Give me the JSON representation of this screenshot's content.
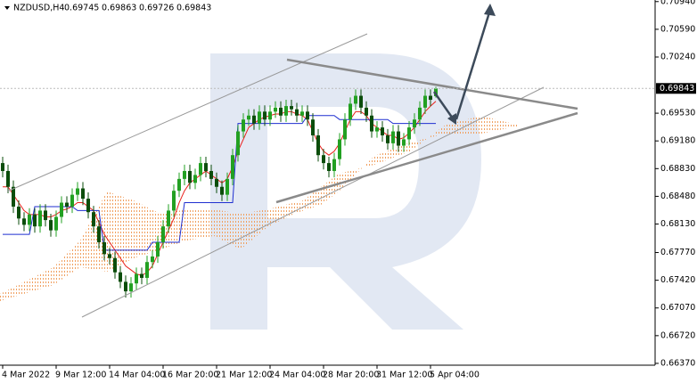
{
  "chart_data": {
    "type": "candlestick",
    "symbol": "NZDUSD,H4",
    "header_prices": [
      "0.69745",
      "0.69863",
      "0.69726",
      "0.69843"
    ],
    "categories": [
      "4 Mar 2022",
      null,
      null,
      null,
      null,
      null,
      null,
      null,
      null,
      null,
      "9 Mar 12:00",
      null,
      null,
      null,
      null,
      null,
      null,
      null,
      null,
      null,
      "14 Mar 04:00",
      null,
      null,
      null,
      null,
      null,
      null,
      null,
      null,
      null,
      "16 Mar 20:00",
      null,
      null,
      null,
      null,
      null,
      null,
      null,
      null,
      null,
      "21 Mar 12:00",
      null,
      null,
      null,
      null,
      null,
      null,
      null,
      null,
      null,
      "24 Mar 04:00",
      null,
      null,
      null,
      null,
      null,
      null,
      null,
      null,
      null,
      "28 Mar 20:00",
      null,
      null,
      null,
      null,
      null,
      null,
      null,
      null,
      null,
      "31 Mar 12:00",
      null,
      null,
      null,
      null,
      null,
      null,
      null,
      null,
      null,
      "5 Apr 04:00",
      null
    ],
    "open": [
      0.689,
      0.688,
      0.686,
      0.6835,
      0.682,
      0.6812,
      0.6825,
      0.681,
      0.683,
      0.6818,
      0.6805,
      0.6822,
      0.684,
      0.6835,
      0.685,
      0.6858,
      0.6845,
      0.6828,
      0.681,
      0.679,
      0.6775,
      0.677,
      0.6752,
      0.674,
      0.6728,
      0.6738,
      0.675,
      0.6745,
      0.6765,
      0.6772,
      0.679,
      0.681,
      0.683,
      0.6855,
      0.687,
      0.688,
      0.6865,
      0.6875,
      0.689,
      0.688,
      0.687,
      0.686,
      0.685,
      0.687,
      0.69,
      0.693,
      0.6945,
      0.695,
      0.694,
      0.6955,
      0.6945,
      0.6955,
      0.696,
      0.695,
      0.6962,
      0.6958,
      0.695,
      0.6955,
      0.6945,
      0.6925,
      0.69,
      0.689,
      0.688,
      0.6895,
      0.692,
      0.6945,
      0.6965,
      0.6975,
      0.696,
      0.695,
      0.693,
      0.6935,
      0.6925,
      0.6915,
      0.693,
      0.6912,
      0.692,
      0.6935,
      0.6945,
      0.696,
      0.6975,
      0.69745
    ],
    "high": [
      0.6898,
      0.6888,
      0.6868,
      0.6843,
      0.6828,
      0.6833,
      0.6833,
      0.6838,
      0.6838,
      0.6826,
      0.683,
      0.6848,
      0.6848,
      0.6858,
      0.6866,
      0.6866,
      0.6853,
      0.6836,
      0.6818,
      0.6798,
      0.6783,
      0.6778,
      0.676,
      0.6748,
      0.6746,
      0.6758,
      0.6758,
      0.6773,
      0.678,
      0.6798,
      0.6818,
      0.6838,
      0.6863,
      0.6878,
      0.6888,
      0.6888,
      0.6883,
      0.6898,
      0.6898,
      0.6888,
      0.6878,
      0.6868,
      0.6878,
      0.6908,
      0.6938,
      0.6953,
      0.6958,
      0.6958,
      0.6963,
      0.6963,
      0.6963,
      0.6968,
      0.6968,
      0.697,
      0.697,
      0.6966,
      0.6963,
      0.6963,
      0.6953,
      0.6933,
      0.6908,
      0.6898,
      0.6903,
      0.6928,
      0.6953,
      0.6973,
      0.6983,
      0.6983,
      0.6968,
      0.6958,
      0.6943,
      0.6943,
      0.6933,
      0.6938,
      0.6938,
      0.6928,
      0.6943,
      0.6953,
      0.6968,
      0.6983,
      0.6983,
      0.69863
    ],
    "low": [
      0.6872,
      0.6852,
      0.6827,
      0.6812,
      0.6804,
      0.6804,
      0.6802,
      0.6802,
      0.681,
      0.6797,
      0.6797,
      0.6814,
      0.6827,
      0.6827,
      0.6842,
      0.6837,
      0.682,
      0.6802,
      0.6782,
      0.6767,
      0.6762,
      0.6744,
      0.6732,
      0.672,
      0.672,
      0.673,
      0.6737,
      0.6737,
      0.6757,
      0.6764,
      0.6782,
      0.6802,
      0.6822,
      0.6847,
      0.6862,
      0.6857,
      0.6857,
      0.6867,
      0.6872,
      0.6862,
      0.6852,
      0.6842,
      0.6842,
      0.6862,
      0.6892,
      0.6922,
      0.6937,
      0.6932,
      0.6932,
      0.6937,
      0.6937,
      0.6947,
      0.6942,
      0.6942,
      0.695,
      0.6942,
      0.6942,
      0.6937,
      0.6917,
      0.6892,
      0.6882,
      0.6872,
      0.6872,
      0.6887,
      0.6912,
      0.6937,
      0.6957,
      0.6952,
      0.6942,
      0.6922,
      0.6922,
      0.6917,
      0.6907,
      0.6907,
      0.6904,
      0.6904,
      0.6912,
      0.6927,
      0.6937,
      0.6952,
      0.6962,
      0.69726
    ],
    "close": [
      0.688,
      0.686,
      0.6835,
      0.682,
      0.6812,
      0.6825,
      0.681,
      0.683,
      0.6818,
      0.6805,
      0.6822,
      0.684,
      0.6835,
      0.685,
      0.6858,
      0.6845,
      0.6828,
      0.681,
      0.679,
      0.6775,
      0.677,
      0.6752,
      0.674,
      0.6728,
      0.6738,
      0.675,
      0.6745,
      0.6765,
      0.6772,
      0.679,
      0.681,
      0.683,
      0.6855,
      0.687,
      0.688,
      0.6865,
      0.6875,
      0.689,
      0.688,
      0.687,
      0.686,
      0.685,
      0.687,
      0.69,
      0.693,
      0.6945,
      0.695,
      0.694,
      0.6955,
      0.6945,
      0.6955,
      0.696,
      0.695,
      0.6962,
      0.6958,
      0.695,
      0.6955,
      0.6945,
      0.6925,
      0.69,
      0.689,
      0.688,
      0.6895,
      0.692,
      0.6945,
      0.6965,
      0.6975,
      0.696,
      0.695,
      0.693,
      0.6935,
      0.6925,
      0.6915,
      0.693,
      0.6912,
      0.692,
      0.6935,
      0.6945,
      0.696,
      0.6975,
      0.697,
      0.69843
    ],
    "up_color": "#22a022",
    "down_color": "#0b4d0b",
    "series": [
      {
        "color": "#e8201a",
        "values": [
          0.686,
          0.686,
          0.685,
          0.684,
          0.683,
          0.6825,
          0.6825,
          0.6825,
          0.6822,
          0.6822,
          0.6825,
          0.683,
          0.6832,
          0.6835,
          0.684,
          0.684,
          0.6835,
          0.683,
          0.6815,
          0.68,
          0.679,
          0.678,
          0.677,
          0.676,
          0.6755,
          0.675,
          0.6748,
          0.6752,
          0.676,
          0.6775,
          0.679,
          0.6805,
          0.682,
          0.684,
          0.6855,
          0.6865,
          0.687,
          0.6875,
          0.688,
          0.6875,
          0.687,
          0.6865,
          0.687,
          0.6885,
          0.6905,
          0.692,
          0.6935,
          0.694,
          0.6945,
          0.6948,
          0.695,
          0.6952,
          0.6952,
          0.6955,
          0.6955,
          0.6952,
          0.695,
          0.6945,
          0.693,
          0.6915,
          0.6905,
          0.69,
          0.6905,
          0.6915,
          0.693,
          0.6945,
          0.6955,
          0.6955,
          0.695,
          0.694,
          0.6935,
          0.693,
          0.6925,
          0.6925,
          0.692,
          0.6922,
          0.6928,
          0.6935,
          0.6945,
          0.6955,
          0.6962,
          0.6968
        ]
      },
      {
        "color": "#1f2fd0",
        "values": [
          0.68,
          0.68,
          0.68,
          0.68,
          0.68,
          0.68,
          0.6835,
          0.6835,
          0.6835,
          0.6835,
          0.6835,
          0.6835,
          0.6835,
          0.6835,
          0.683,
          0.683,
          0.683,
          0.683,
          0.683,
          0.678,
          0.678,
          0.678,
          0.678,
          0.678,
          0.678,
          0.678,
          0.678,
          0.678,
          0.679,
          0.679,
          0.679,
          0.679,
          0.679,
          0.679,
          0.684,
          0.684,
          0.684,
          0.684,
          0.684,
          0.684,
          0.684,
          0.684,
          0.684,
          0.684,
          0.694,
          0.694,
          0.694,
          0.694,
          0.694,
          0.694,
          0.694,
          0.694,
          0.694,
          0.694,
          0.694,
          0.694,
          0.694,
          0.695,
          0.695,
          0.695,
          0.695,
          0.695,
          0.695,
          0.6945,
          0.6945,
          0.6945,
          0.6945,
          0.6945,
          0.6945,
          0.6945,
          0.6945,
          0.6945,
          0.6945,
          0.694,
          0.694,
          0.694,
          0.694,
          0.694,
          0.694,
          0.694,
          0.694,
          0.694
        ]
      }
    ],
    "ylim": [
      0.66347,
      0.7096
    ],
    "yticks": [
      {
        "value": 0.7094,
        "label": "0.70940"
      },
      {
        "value": 0.7059,
        "label": "0.70590"
      },
      {
        "value": 0.7024,
        "label": "0.70240"
      },
      {
        "value": 0.6953,
        "label": "0.69530"
      },
      {
        "value": 0.6918,
        "label": "0.69180"
      },
      {
        "value": 0.6883,
        "label": "0.68830"
      },
      {
        "value": 0.6848,
        "label": "0.68480"
      },
      {
        "value": 0.6813,
        "label": "0.68130"
      },
      {
        "value": 0.6777,
        "label": "0.67770"
      },
      {
        "value": 0.6742,
        "label": "0.67420"
      },
      {
        "value": 0.6707,
        "label": "0.67070"
      },
      {
        "value": 0.6672,
        "label": "0.66720"
      },
      {
        "value": 0.6637,
        "label": "0.66370"
      }
    ],
    "last_price": {
      "value": 0.69843,
      "label": "0.69843"
    }
  }
}
